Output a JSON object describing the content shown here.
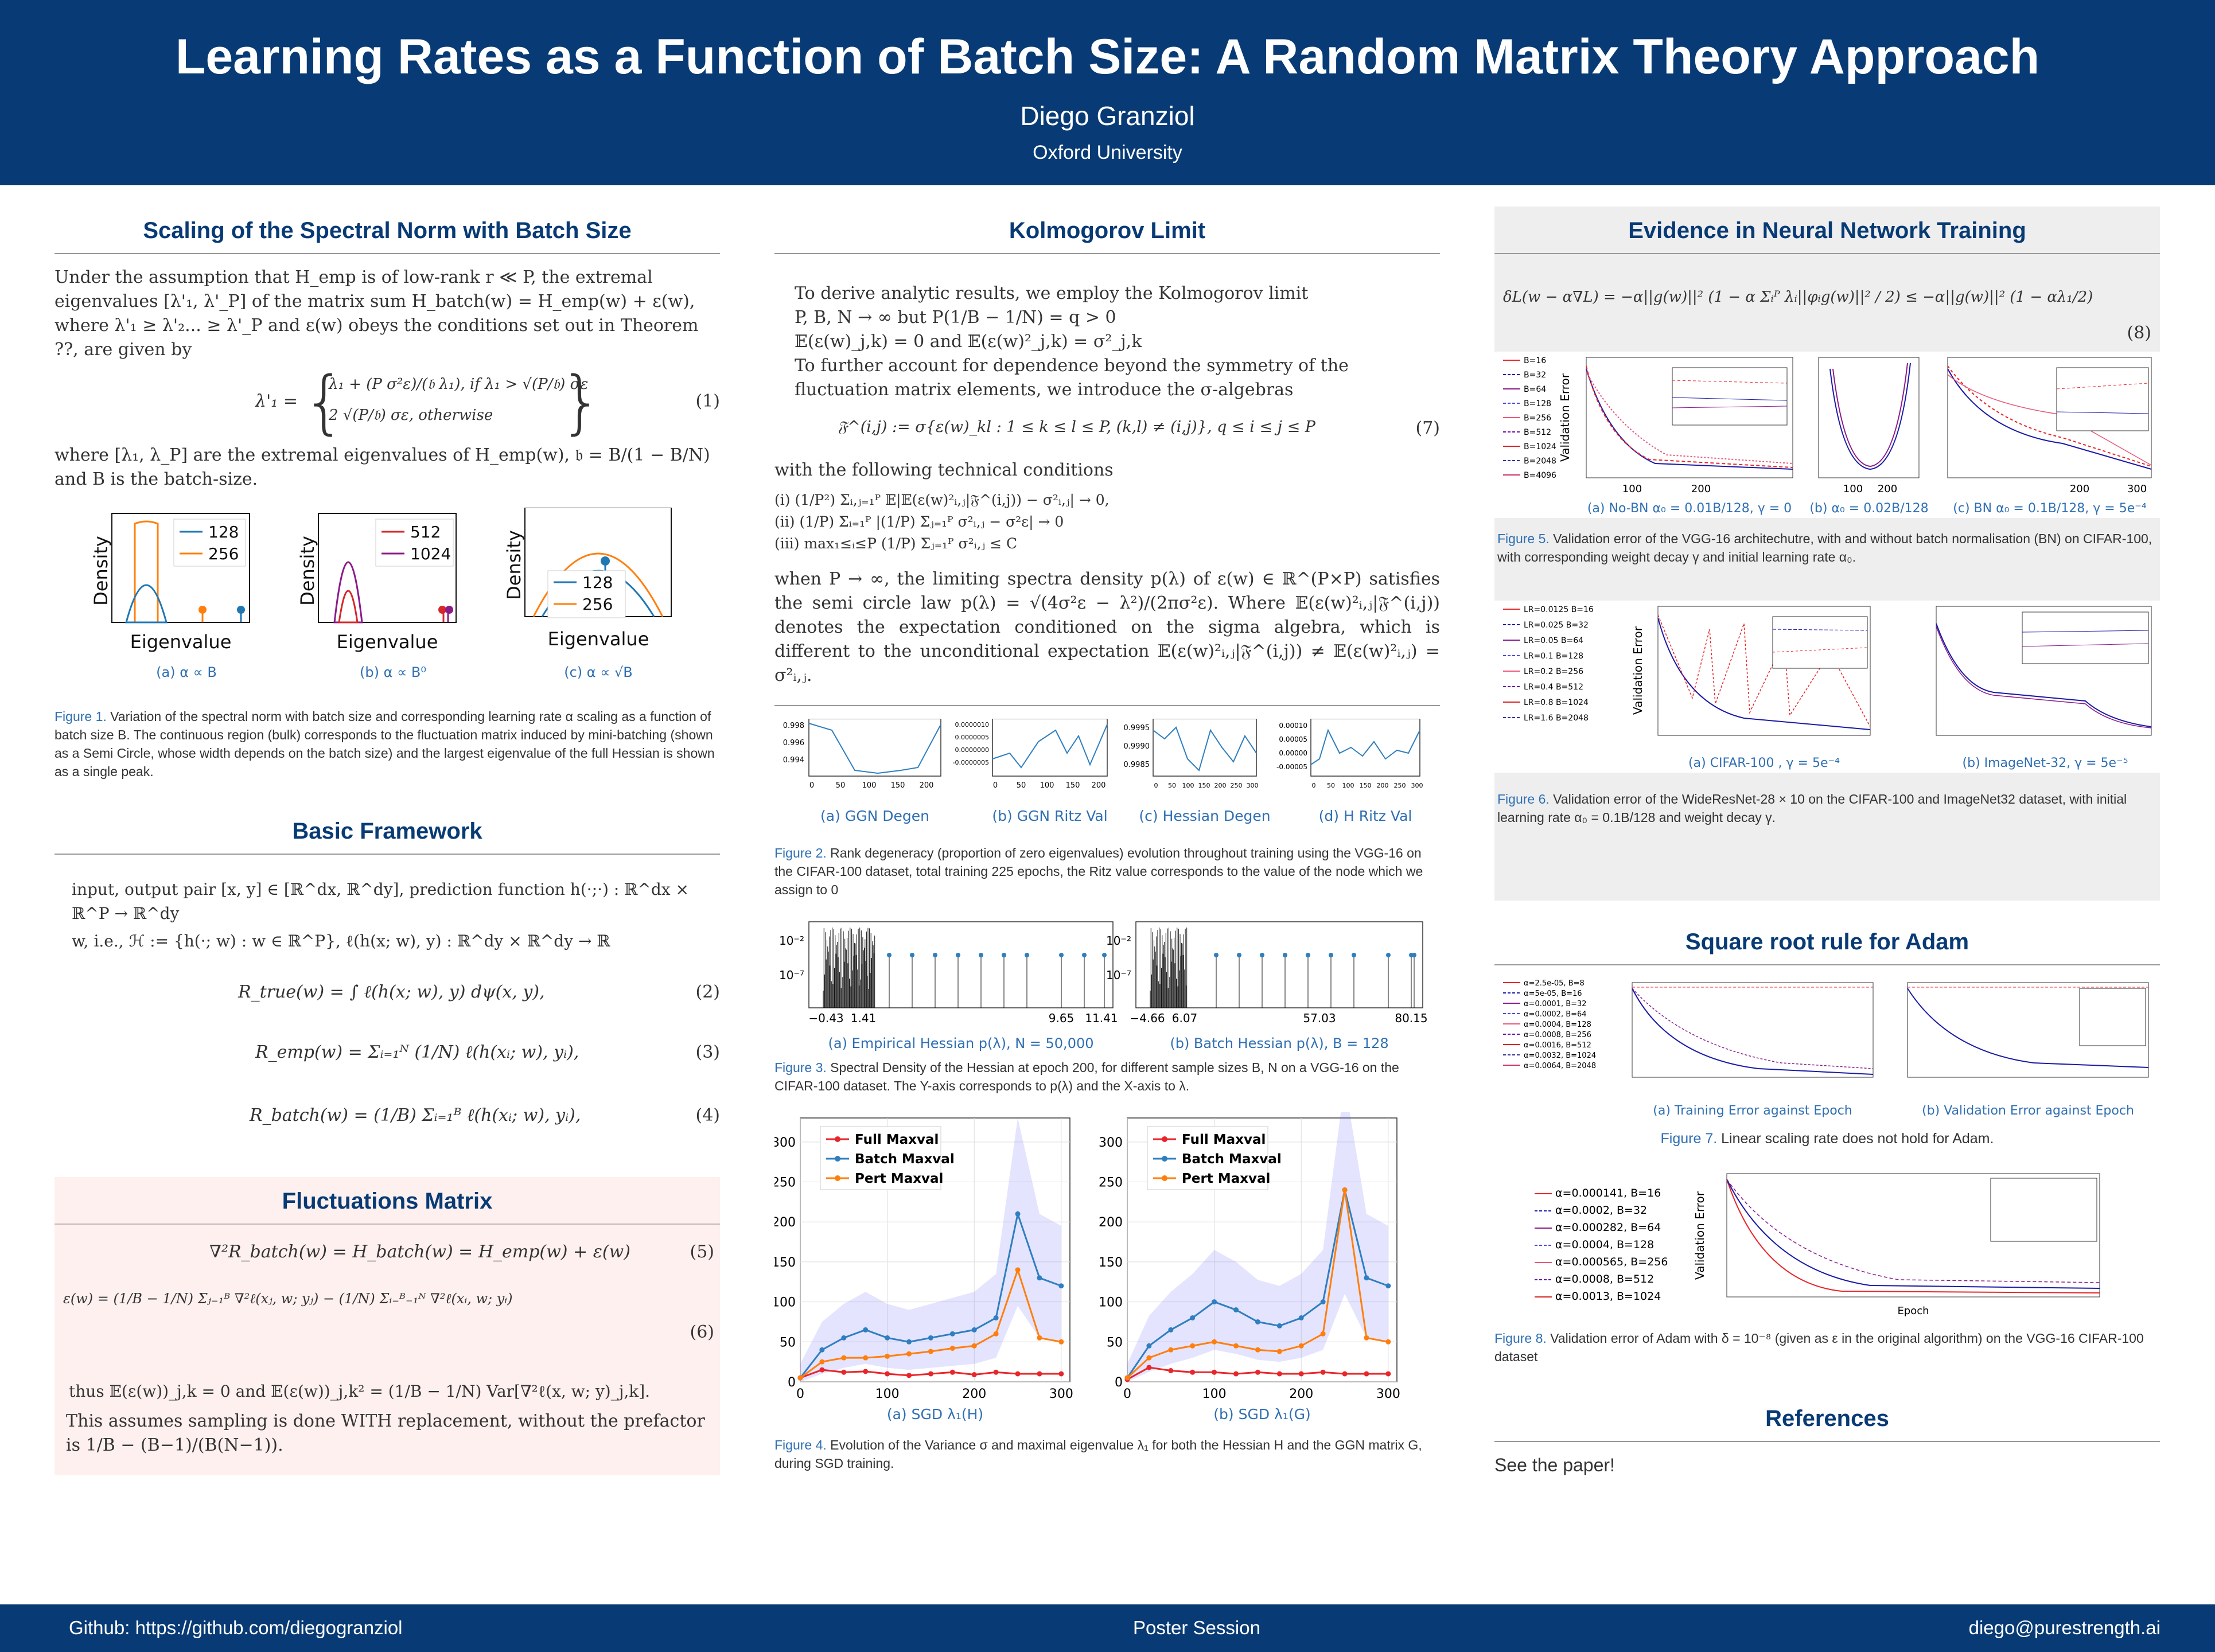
{
  "header": {
    "title": "Learning Rates as a Function of Batch Size: A Random Matrix Theory Approach",
    "author": "Diego Granziol",
    "affiliation": "Oxford University"
  },
  "footer": {
    "left": "Github: https://github.com/diegogranziol",
    "center": "Poster Session",
    "right": "diego@purestrength.ai"
  },
  "col1": {
    "s1": {
      "title": "Scaling of the Spectral Norm with Batch Size",
      "p1": "Under the assumption that H_emp is of low-rank r ≪ P, the extremal eigenvalues [λ'₁, λ'_P] of the matrix sum H_batch(w) = H_emp(w) + ε(w), where λ'₁ ≥ λ'₂... ≥ λ'_P and ε(w) obeys the conditions set out in Theorem ??, are given by",
      "eq_case1": "λ₁ + (P σ²ε)/(𝔟 λ₁),  if λ₁ > √(P/𝔟) σε",
      "eq_case2": "2 √(P/𝔟) σε,      otherwise",
      "eq_lhs": "λ'₁ =",
      "eq_num": "(1)",
      "p2": "where [λ₁, λ_P] are the extremal eigenvalues of H_emp(w), 𝔟 = B/(1 − B/N) and B is the batch-size.",
      "fig_xlabel": "Eigenvalue",
      "fig_ylabel": "Density",
      "legend_a": [
        "128",
        "256"
      ],
      "legend_b": [
        "512",
        "1024"
      ],
      "legend_c": [
        "128",
        "256"
      ],
      "sub_a": "(a) α ∝ B",
      "sub_b": "(b) α ∝ B⁰",
      "sub_c": "(c) α ∝ √B",
      "cap_lbl": "Figure 1.",
      "cap": " Variation of the spectral norm with batch size and corresponding learning rate α scaling as a function of batch size B. The continuous region (bulk) corresponds to the fluctuation matrix induced by mini-batching (shown as a Semi Circle, whose width depends on the batch size) and the largest eigenvalue of the full Hessian is shown as a single peak."
    },
    "s2": {
      "title": "Basic Framework",
      "p1": "input, output pair [x, y] ∈ [ℝ^dx, ℝ^dy], prediction function h(·;·) : ℝ^dx × ℝ^P → ℝ^dy",
      "p2": "w, i.e., ℋ := {h(·; w) : w ∈ ℝ^P}, ℓ(h(x; w), y) : ℝ^dy × ℝ^dy → ℝ",
      "eq2": "R_true(w) = ∫ ℓ(h(x; w), y) dψ(x, y),",
      "eq2n": "(2)",
      "eq3": "R_emp(w) = Σᵢ₌₁ᴺ (1/N) ℓ(h(xᵢ; w), yᵢ),",
      "eq3n": "(3)",
      "eq4": "R_batch(w) = (1/B) Σᵢ₌₁ᴮ ℓ(h(xᵢ; w), yᵢ),",
      "eq4n": "(4)"
    },
    "s3": {
      "title": "Fluctuations Matrix",
      "eq5": "∇²R_batch(w) = H_batch(w) = H_emp(w) + ε(w)",
      "eq5n": "(5)",
      "eq6": "ε(w) = (1/B − 1/N) Σⱼ₌₁ᴮ ∇²ℓ(xⱼ, w; yⱼ) − (1/N) Σᵢ₌ᴮ₋₁ᴺ ∇²ℓ(xᵢ, w; yᵢ)",
      "eq6n": "(6)",
      "p1": "thus 𝔼(ε(w))_j,k = 0 and 𝔼(ε(w))_j,k² = (1/B − 1/N) Var[∇²ℓ(x, w; y)_j,k].",
      "p2": "This assumes sampling is done WITH replacement, without the prefactor is 1/B − (B−1)/(B(N−1))."
    }
  },
  "col2": {
    "s1": {
      "title": "Kolmogorov Limit",
      "p1": "To derive analytic results, we employ the Kolmogorov limit",
      "p2": "P, B, N → ∞ but P(1/B − 1/N) = q > 0",
      "p3": "𝔼(ε(w)_j,k) = 0 and 𝔼(ε(w)²_j,k) = σ²_j,k",
      "p4": "To further account for dependence beyond the symmetry of the fluctuation matrix elements, we introduce the σ-algebras",
      "eq7": "𝔉^(i,j) := σ{ε(w)_kl : 1 ≤ k ≤ l ≤ P, (k,l) ≠ (i,j)},   q ≤ i ≤ j ≤ P",
      "eq7n": "(7)",
      "p5": "with the following technical conditions",
      "c1": "(i) (1/P²) Σᵢ,ⱼ₌₁ᴾ 𝔼|𝔼(ε(w)²ᵢ,ⱼ|𝔉^(i,j)) − σ²ᵢ,ⱼ| → 0,",
      "c2": "(ii) (1/P) Σᵢ₌₁ᴾ |(1/P) Σⱼ₌₁ᴾ σ²ᵢ,ⱼ − σ²ε| → 0",
      "c3": "(iii) max₁≤ᵢ≤P (1/P) Σⱼ₌₁ᴾ σ²ᵢ,ⱼ ≤ C",
      "p6": "when P → ∞, the limiting spectra density p(λ) of ε(w) ∈ ℝ^(P×P) satisfies the semi circle law p(λ) = √(4σ²ε − λ²)/(2πσ²ε). Where 𝔼(ε(w)²ᵢ,ⱼ|𝔉^(i,j)) denotes the expectation conditioned on the sigma algebra, which is different to the unconditional expectation 𝔼(ε(w)²ᵢ,ⱼ|𝔉^(i,j)) ≠ 𝔼(ε(w)²ᵢ,ⱼ) = σ²ᵢ,ⱼ."
    },
    "fig2": {
      "sub_a": "(a) GGN Degen",
      "sub_b": "(b) GGN Ritz Val",
      "sub_c": "(c) Hessian Degen",
      "sub_d": "(d) H Ritz Val",
      "ya": [
        "0.998",
        "0.996",
        "0.994"
      ],
      "yb": [
        "0.0000010",
        "0.0000005",
        "0.0000000",
        "-0.0000005"
      ],
      "yc": [
        "0.9995",
        "0.9990",
        "0.9985"
      ],
      "yd": [
        "0.00010",
        "0.00005",
        "0.00000",
        "-0.00005"
      ],
      "xa": [
        "0",
        "50",
        "100",
        "150",
        "200"
      ],
      "xb": [
        "0",
        "50",
        "100",
        "150",
        "200"
      ],
      "xc": [
        "0",
        "50",
        "100",
        "150",
        "200",
        "250",
        "300"
      ],
      "xd": [
        "0",
        "50",
        "100",
        "150",
        "200",
        "250",
        "300"
      ],
      "cap_lbl": "Figure 2.",
      "cap": " Rank degeneracy (proportion of zero eigenvalues) evolution throughout training using the VGG-16 on the CIFAR-100 dataset, total training 225 epochs, the Ritz value corresponds to the value of the node which we assign to 0"
    },
    "fig3": {
      "y": [
        "10⁻²",
        "10⁻⁷"
      ],
      "xa": [
        "−0.43",
        "1.41",
        "9.65",
        "11.41"
      ],
      "xb": [
        "−4.66",
        "6.07",
        "57.03",
        "80.15"
      ],
      "sub_a": "(a) Empirical Hessian p(λ), N = 50,000",
      "sub_b": "(b) Batch Hessian p(λ), B = 128",
      "cap_lbl": "Figure 3.",
      "cap": " Spectral Density of the Hessian at epoch 200, for different sample sizes B, N on a VGG-16 on the CIFAR-100 dataset. The Y-axis corresponds to p(λ) and the X-axis to λ."
    },
    "fig4": {
      "legend": [
        "Full Maxval",
        "Batch Maxval",
        "Pert Maxval"
      ],
      "sub_a": "(a) SGD λ₁(H)",
      "sub_b": "(b) SGD λ₁(G)",
      "cap_lbl": "Figure 4.",
      "cap": " Evolution of the Variance σ and maximal eigenvalue λ₁ for both the Hessian H and the GGN matrix G, during SGD training."
    }
  },
  "col3": {
    "s1": {
      "title": "Evidence in Neural Network Training",
      "eq8": "δL(w − α∇L) = −α||g(w)||² (1 − α Σᵢᴾ λᵢ||φᵢg(w)||² / 2) ≤ −α||g(w)||² (1 − αλ₁/2)",
      "eq8n": "(8)"
    },
    "fig5": {
      "legend": [
        "B=16",
        "B=32",
        "B=64",
        "B=128",
        "B=256",
        "B=512",
        "B=1024",
        "B=2048",
        "B=4096"
      ],
      "ylabel": "Validation Error",
      "sub_a": "(a) No-BN α₀ = 0.01B/128, γ = 0",
      "sub_b": "(b) α₀ = 0.02B/128",
      "sub_c": "(c) BN α₀ = 0.1B/128, γ = 5e⁻⁴",
      "cap_lbl": "Figure 5.",
      "cap": " Validation error of the VGG-16 architechutre, with and without batch normalisation (BN) on CIFAR-100, with corresponding weight decay γ and initial learning rate α₀."
    },
    "fig6": {
      "legend": [
        "LR=0.0125 B=16",
        "LR=0.025 B=32",
        "LR=0.05 B=64",
        "LR=0.1 B=128",
        "LR=0.2 B=256",
        "LR=0.4 B=512",
        "LR=0.8 B=1024",
        "LR=1.6 B=2048"
      ],
      "ylabel": "Validation Error",
      "sub_a": "(a) CIFAR-100 , γ = 5e⁻⁴",
      "sub_b": "(b) ImageNet-32, γ = 5e⁻⁵",
      "cap_lbl": "Figure 6.",
      "cap": " Validation error of the WideResNet-28 × 10 on the CIFAR-100 and ImageNet32 dataset, with initial learning rate α₀ = 0.1B/128 and weight decay γ."
    },
    "s2": {
      "title": "Square root rule for Adam"
    },
    "fig7": {
      "legend": [
        "α=2.5e-05, B=8",
        "α=5e-05, B=16",
        "α=0.0001, B=32",
        "α=0.0002, B=64",
        "α=0.0004, B=128",
        "α=0.0008, B=256",
        "α=0.0016, B=512",
        "α=0.0032, B=1024",
        "α=0.0064, B=2048"
      ],
      "sub_a": "(a) Training Error against Epoch",
      "sub_b": "(b) Validation Error against Epoch",
      "cap_lbl": "Figure 7.",
      "cap": " Linear scaling rate does not hold for Adam."
    },
    "fig8": {
      "legend": [
        "α=0.000141, B=16",
        "α=0.0002, B=32",
        "α=0.000282, B=64",
        "α=0.0004, B=128",
        "α=0.000565, B=256",
        "α=0.0008, B=512",
        "α=0.0013, B=1024"
      ],
      "ylabel": "Validation Error",
      "xlabel": "Epoch",
      "cap_lbl": "Figure 8.",
      "cap": " Validation error of Adam with δ = 10⁻⁸ (given as ε in the original algorithm) on the VGG-16 CIFAR-100 dataset"
    },
    "s3": {
      "title": "References",
      "text": "See the paper!"
    }
  },
  "chart_data": [
    {
      "type": "line",
      "title": "SGD λ₁(H)",
      "x": [
        0,
        25,
        50,
        75,
        100,
        125,
        150,
        175,
        200,
        225,
        250,
        275,
        300
      ],
      "series": [
        {
          "name": "Full Maxval",
          "values": [
            5,
            15,
            12,
            13,
            10,
            8,
            10,
            12,
            9,
            12,
            10,
            10,
            10
          ]
        },
        {
          "name": "Batch Maxval",
          "values": [
            5,
            40,
            55,
            65,
            55,
            50,
            55,
            60,
            65,
            80,
            210,
            130,
            120
          ]
        },
        {
          "name": "Pert Maxval",
          "values": [
            5,
            25,
            30,
            30,
            32,
            35,
            38,
            42,
            45,
            60,
            140,
            55,
            50
          ]
        }
      ],
      "ylim": [
        0,
        330
      ],
      "xlim": [
        0,
        310
      ]
    },
    {
      "type": "line",
      "title": "SGD λ₁(G)",
      "x": [
        0,
        25,
        50,
        75,
        100,
        125,
        150,
        175,
        200,
        225,
        250,
        275,
        300
      ],
      "series": [
        {
          "name": "Full Maxval",
          "values": [
            3,
            18,
            14,
            12,
            12,
            10,
            12,
            10,
            10,
            12,
            10,
            10,
            10
          ]
        },
        {
          "name": "Batch Maxval",
          "values": [
            5,
            45,
            65,
            80,
            100,
            90,
            75,
            70,
            80,
            100,
            240,
            130,
            120
          ]
        },
        {
          "name": "Pert Maxval",
          "values": [
            5,
            30,
            40,
            45,
            50,
            45,
            40,
            38,
            45,
            60,
            240,
            55,
            50
          ]
        }
      ],
      "ylim": [
        0,
        330
      ],
      "xlim": [
        0,
        310
      ]
    }
  ],
  "colors": {
    "navy": "#083b75",
    "link": "#2f6fb3",
    "red": "#e8262a",
    "blue": "#2f7fbf",
    "orange": "#ff7f0e",
    "purple": "#8b1a8b"
  }
}
